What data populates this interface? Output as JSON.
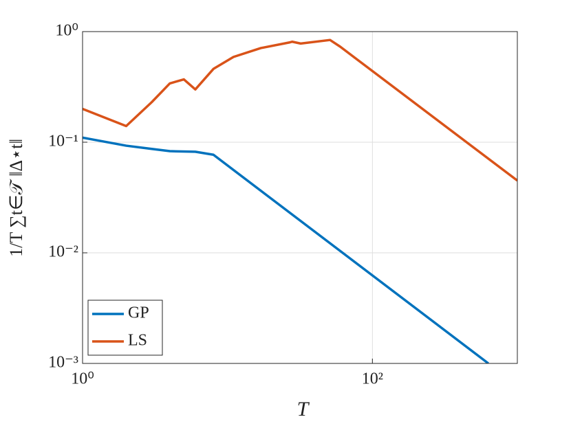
{
  "chart_data": {
    "type": "line",
    "x_label": "T",
    "y_label": "1/T ∑t∈𝒯 ‖Δ⋆t‖",
    "series": [
      {
        "name": "GP",
        "color": "#0072BD",
        "x": [
          1,
          2,
          3,
          4,
          6,
          8,
          631
        ],
        "values": [
          0.11,
          0.093,
          0.087,
          0.083,
          0.082,
          0.077,
          0.001
        ]
      },
      {
        "name": "LS",
        "color": "#D95319",
        "x": [
          1,
          2,
          3,
          4,
          5,
          6,
          8,
          11,
          17,
          27,
          28,
          32,
          51,
          60,
          1000
        ],
        "values": [
          0.2,
          0.14,
          0.23,
          0.34,
          0.37,
          0.3,
          0.46,
          0.59,
          0.71,
          0.8,
          0.81,
          0.78,
          0.84,
          0.73,
          0.045
        ]
      }
    ],
    "xlim": [
      1,
      1000
    ],
    "ylim": [
      0.001,
      1
    ],
    "xscale": "log",
    "yscale": "log",
    "xticks": [
      {
        "value": 1,
        "label": "10⁰"
      },
      {
        "value": 100,
        "label": "10²"
      }
    ],
    "yticks": [
      {
        "value": 0.001,
        "label": "10⁻³"
      },
      {
        "value": 0.01,
        "label": "10⁻²"
      },
      {
        "value": 0.1,
        "label": "10⁻¹"
      },
      {
        "value": 1,
        "label": "10⁰"
      }
    ],
    "grid": true,
    "legend": "lower left"
  }
}
